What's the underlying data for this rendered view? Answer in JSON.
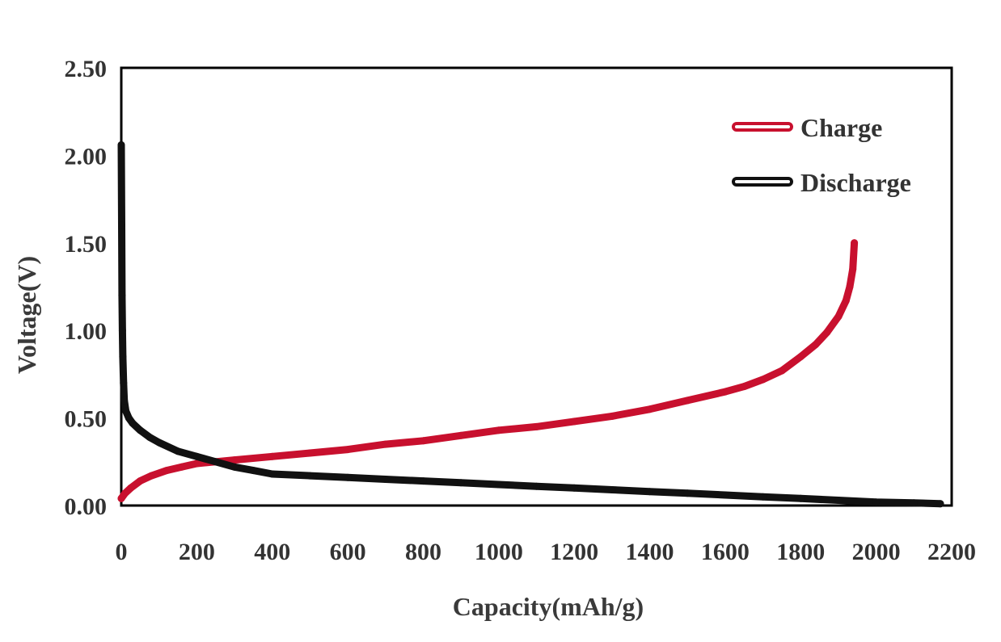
{
  "chart_data": {
    "type": "line",
    "title": "",
    "xlabel": "Capacity(mAh/g)",
    "ylabel": "Voltage(V)",
    "xlim": [
      0,
      2200
    ],
    "ylim": [
      0,
      2.5
    ],
    "x_ticks": [
      "0",
      "200",
      "400",
      "600",
      "800",
      "1000",
      "1200",
      "1400",
      "1600",
      "1800",
      "2000",
      "2200"
    ],
    "x_tick_values": [
      0,
      200,
      400,
      600,
      800,
      1000,
      1200,
      1400,
      1600,
      1800,
      2000,
      2200
    ],
    "y_ticks": [
      "0.00",
      "0.50",
      "1.00",
      "1.50",
      "2.00",
      "2.50"
    ],
    "y_tick_values": [
      0,
      0.5,
      1.0,
      1.5,
      2.0,
      2.5
    ],
    "grid": false,
    "legend_position": "top-right",
    "series": [
      {
        "name": "Charge",
        "color": "#c8102e",
        "x": [
          0,
          10,
          25,
          50,
          80,
          120,
          160,
          200,
          250,
          300,
          400,
          500,
          600,
          700,
          800,
          900,
          1000,
          1100,
          1200,
          1300,
          1400,
          1500,
          1600,
          1650,
          1700,
          1750,
          1800,
          1840,
          1870,
          1900,
          1920,
          1930,
          1938,
          1942
        ],
        "y": [
          0.04,
          0.07,
          0.1,
          0.14,
          0.17,
          0.2,
          0.22,
          0.24,
          0.25,
          0.26,
          0.28,
          0.3,
          0.32,
          0.35,
          0.37,
          0.4,
          0.43,
          0.45,
          0.48,
          0.51,
          0.55,
          0.6,
          0.65,
          0.68,
          0.72,
          0.77,
          0.85,
          0.92,
          0.99,
          1.08,
          1.17,
          1.25,
          1.35,
          1.5
        ]
      },
      {
        "name": "Discharge",
        "color": "#111111",
        "x": [
          0,
          1,
          2,
          3,
          4,
          6,
          8,
          12,
          20,
          30,
          50,
          75,
          100,
          150,
          200,
          250,
          300,
          350,
          400,
          500,
          600,
          700,
          800,
          900,
          1000,
          1100,
          1200,
          1300,
          1400,
          1500,
          1600,
          1700,
          1800,
          1900,
          2000,
          2100,
          2170
        ],
        "y": [
          2.06,
          1.6,
          1.2,
          1.0,
          0.85,
          0.7,
          0.6,
          0.54,
          0.5,
          0.47,
          0.43,
          0.39,
          0.36,
          0.31,
          0.28,
          0.25,
          0.22,
          0.2,
          0.18,
          0.17,
          0.16,
          0.15,
          0.14,
          0.13,
          0.12,
          0.11,
          0.1,
          0.09,
          0.08,
          0.07,
          0.06,
          0.05,
          0.04,
          0.03,
          0.02,
          0.015,
          0.01
        ]
      }
    ]
  }
}
